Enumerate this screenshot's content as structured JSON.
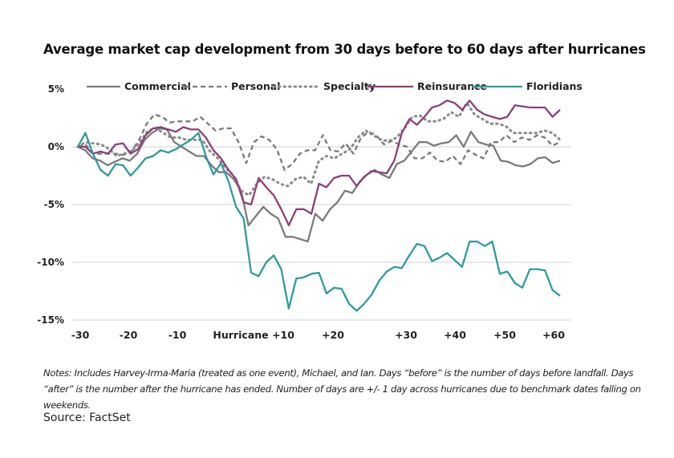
{
  "chart_data": {
    "type": "line",
    "title": "Average market cap development from 30 days before to 60 days after hurricanes",
    "xlabel": "",
    "ylabel": "",
    "xlim": [
      -30,
      61
    ],
    "ylim": [
      -15,
      5
    ],
    "grid": "horizontal",
    "gridlines": [
      0,
      -5,
      -10,
      -15
    ],
    "legend_position": "top",
    "y_ticks": [
      {
        "value": 5,
        "label": "5%"
      },
      {
        "value": 0,
        "label": "0%"
      },
      {
        "value": -5,
        "label": "-5%"
      },
      {
        "value": -10,
        "label": "-10%"
      },
      {
        "value": -15,
        "label": "-15%"
      }
    ],
    "x_ticks": [
      {
        "value": -30,
        "label": "-30"
      },
      {
        "value": -20,
        "label": "-20"
      },
      {
        "value": -10,
        "label": "-10"
      },
      {
        "value": 0,
        "label": "Hurricane"
      },
      {
        "value": 10,
        "label": "+10"
      },
      {
        "value": 20,
        "label": "+20"
      },
      {
        "value": 30,
        "label": "+30"
      },
      {
        "value": 40,
        "label": "+40"
      },
      {
        "value": 50,
        "label": "+50"
      },
      {
        "value": 60,
        "label": "+60"
      }
    ],
    "series_x_range": [
      -30,
      61
    ],
    "series": [
      {
        "name": "Commercial",
        "color": "#7a7a7a",
        "style": "solid",
        "values": [
          0,
          -0.3,
          -1.0,
          -1.2,
          -1.6,
          -1.3,
          -1.0,
          -1.2,
          -0.6,
          0.6,
          1.2,
          1.6,
          1.5,
          0.4,
          0.0,
          -0.4,
          -0.8,
          -0.8,
          -1.6,
          -2.2,
          -2.2,
          -2.8,
          -3.8,
          -6.8,
          -6.0,
          -5.2,
          -5.8,
          -6.2,
          -7.8,
          -7.8,
          -8.0,
          -8.2,
          -5.8,
          -6.4,
          -5.4,
          -4.8,
          -3.8,
          -4.0,
          -3.0,
          -2.4,
          -2.0,
          -2.4,
          -2.7,
          -1.5,
          -1.2,
          -0.4,
          0.4,
          0.4,
          0.1,
          0.3,
          0.4,
          1.0,
          0.0,
          1.3,
          0.4,
          0.2,
          0.1,
          -1.2,
          -1.3,
          -1.6,
          -1.7,
          -1.5,
          -1.0,
          -0.9,
          -1.4,
          -1.2
        ]
      },
      {
        "name": "Personal",
        "color": "#7a7a7a",
        "style": "dashed",
        "values": [
          0,
          0.2,
          -0.6,
          -0.6,
          -0.6,
          -0.6,
          -0.7,
          -0.4,
          0.6,
          2.0,
          2.8,
          2.6,
          2.1,
          2.2,
          2.2,
          2.2,
          2.6,
          2.0,
          1.4,
          1.6,
          1.6,
          0.4,
          -1.4,
          0.4,
          0.9,
          0.6,
          -0.2,
          -2.0,
          -1.5,
          -0.6,
          -0.3,
          -0.3,
          1.0,
          -0.3,
          -0.4,
          0.3,
          -0.6,
          0.8,
          1.3,
          1.0,
          0.2,
          0.5,
          0.2,
          0.0,
          -1.0,
          -1.0,
          -0.5,
          -1.2,
          -1.3,
          -0.8,
          -1.5,
          -0.3,
          -0.7,
          -1.0,
          0.4,
          0.4,
          1.0,
          0.4,
          0.8,
          0.6,
          1.0,
          0.8,
          0.1,
          0.4
        ]
      },
      {
        "name": "Specialty",
        "color": "#8a8a8a",
        "style": "dotted",
        "values": [
          0,
          0.4,
          0.3,
          0.2,
          -0.2,
          -0.8,
          -0.6,
          -0.3,
          0.4,
          1.4,
          1.6,
          1.2,
          0.8,
          0.8,
          0.6,
          0.6,
          0.6,
          -0.4,
          -1.0,
          -1.8,
          -2.5,
          -3.8,
          -4.2,
          -3.2,
          -2.6,
          -2.8,
          -3.2,
          -3.4,
          -2.8,
          -2.6,
          -3.2,
          -1.2,
          -0.8,
          -1.0,
          -0.6,
          -0.2,
          0.8,
          1.4,
          1.0,
          0.6,
          0.5,
          0.8,
          1.6,
          2.6,
          2.7,
          2.2,
          2.2,
          2.4,
          3.0,
          2.6,
          3.8,
          2.8,
          2.4,
          2.0,
          2.0,
          1.8,
          1.2,
          1.2,
          1.2,
          1.2,
          1.4,
          1.2,
          0.6
        ]
      },
      {
        "name": "Reinsurance",
        "color": "#8e3f78",
        "style": "solid",
        "values": [
          0,
          0.0,
          -0.6,
          -0.4,
          -0.6,
          0.2,
          0.3,
          -0.6,
          -0.2,
          1.0,
          1.6,
          1.7,
          1.5,
          1.3,
          1.7,
          1.5,
          1.5,
          0.8,
          -0.3,
          -1.0,
          -2.0,
          -2.8,
          -4.8,
          -5.0,
          -2.7,
          -3.5,
          -4.2,
          -5.4,
          -6.8,
          -5.4,
          -5.4,
          -5.8,
          -3.2,
          -3.5,
          -2.7,
          -2.5,
          -2.5,
          -3.4,
          -2.6,
          -2.1,
          -2.2,
          -2.3,
          -1.2,
          1.2,
          2.4,
          1.9,
          2.6,
          3.4,
          3.6,
          4.0,
          3.8,
          3.2,
          4.0,
          3.2,
          2.8,
          2.6,
          2.4,
          2.6,
          3.6,
          3.5,
          3.4,
          3.4,
          3.4,
          2.6,
          3.2
        ]
      },
      {
        "name": "Floridians",
        "color": "#2e9aa0",
        "style": "solid",
        "values": [
          0,
          1.2,
          -0.6,
          -2.0,
          -2.5,
          -1.5,
          -1.6,
          -2.5,
          -1.8,
          -1.0,
          -0.8,
          -0.3,
          -0.5,
          -0.2,
          0.2,
          0.6,
          1.2,
          -0.8,
          -2.4,
          -1.4,
          -3.0,
          -5.2,
          -6.2,
          -10.9,
          -11.2,
          -10.0,
          -9.4,
          -10.6,
          -14.0,
          -11.4,
          -11.3,
          -11.0,
          -10.9,
          -12.7,
          -12.2,
          -12.3,
          -13.6,
          -14.2,
          -13.6,
          -12.8,
          -11.6,
          -10.8,
          -10.4,
          -10.5,
          -9.4,
          -8.4,
          -8.6,
          -9.9,
          -9.6,
          -9.2,
          -9.8,
          -10.4,
          -8.2,
          -8.2,
          -8.6,
          -8.2,
          -11.0,
          -10.8,
          -11.8,
          -12.2,
          -10.6,
          -10.6,
          -10.7,
          -12.4,
          -12.9
        ]
      }
    ]
  },
  "notes": "Notes: Includes Harvey-Irma-Maria (treated as one event), Michael, and Ian. Days “before” is the number of days before landfall. Days “after” is the number after the hurricane has ended. Number of days are +/- 1 day across hurricanes due to benchmark dates falling on weekends.",
  "source": "Source: FactSet"
}
